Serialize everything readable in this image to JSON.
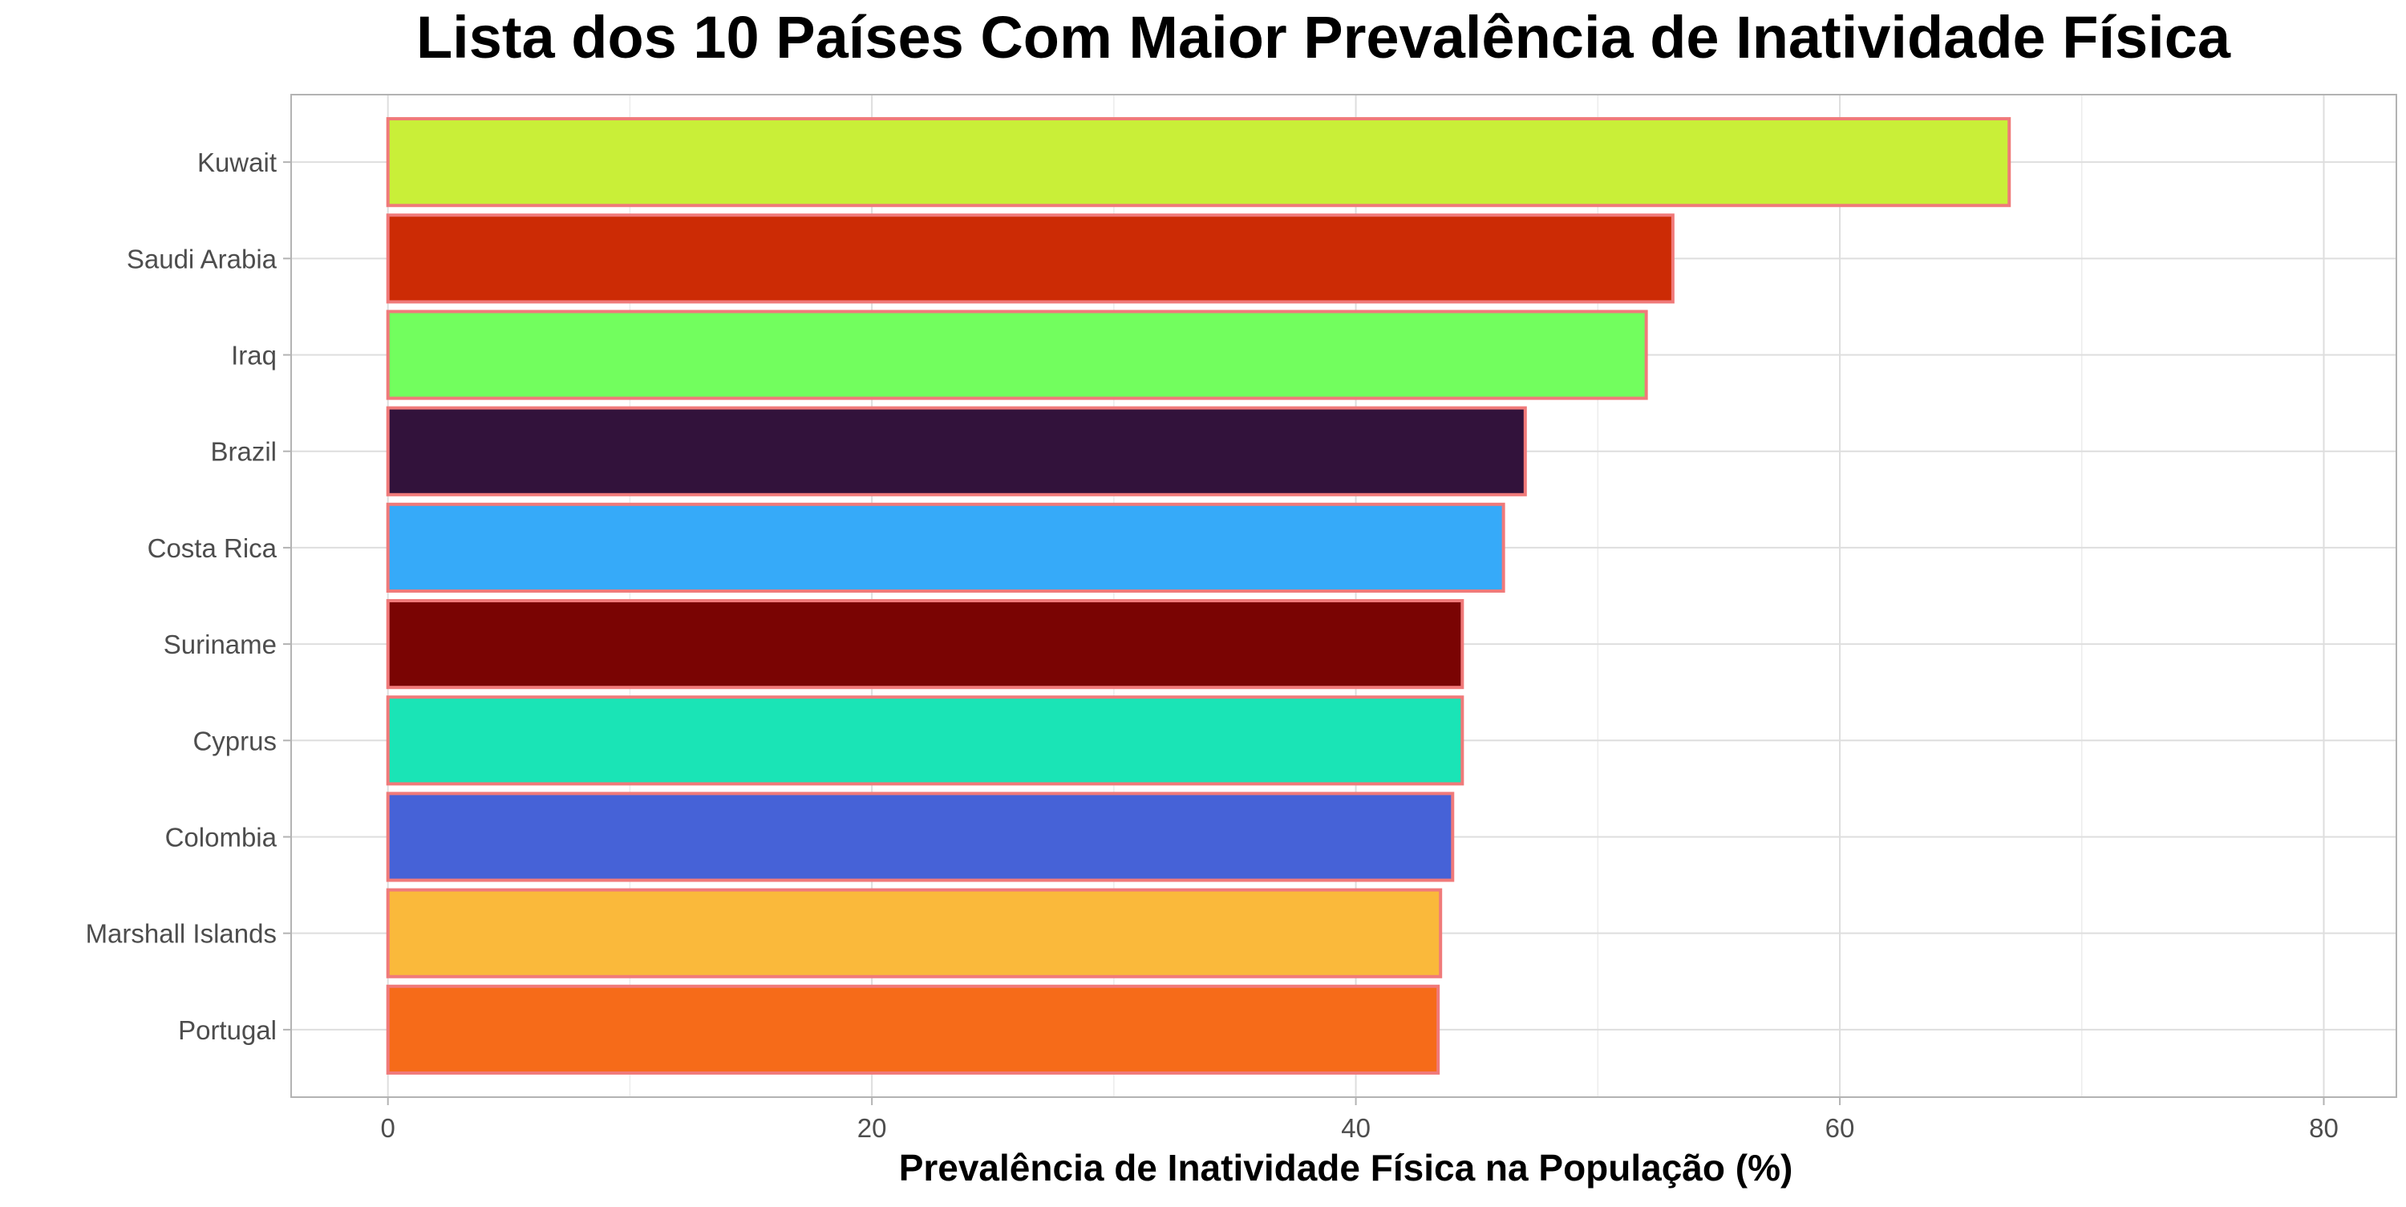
{
  "chart_data": {
    "type": "bar",
    "orientation": "horizontal",
    "title": "Lista dos 10 Países Com Maior Prevalência de Inatividade Física",
    "xlabel": "Prevalência de Inatividade Física na População (%)",
    "ylabel": "",
    "xlim": [
      -4,
      83
    ],
    "x_ticks": [
      0,
      20,
      40,
      60,
      80
    ],
    "grid": true,
    "legend": "none",
    "bar_outline_color": "#f07a7a",
    "categories": [
      "Kuwait",
      "Saudi Arabia",
      "Iraq",
      "Brazil",
      "Costa Rica",
      "Suriname",
      "Cyprus",
      "Colombia",
      "Marshall Islands",
      "Portugal"
    ],
    "values": [
      67.0,
      53.1,
      52.0,
      47.0,
      46.1,
      44.4,
      44.4,
      44.0,
      43.5,
      43.4
    ],
    "colors": [
      "#c9ef38",
      "#cc2b05",
      "#72fe5e",
      "#32123b",
      "#36aaf9",
      "#7a0403",
      "#1ae4b6",
      "#4662d7",
      "#fab93b",
      "#f66b19"
    ]
  }
}
